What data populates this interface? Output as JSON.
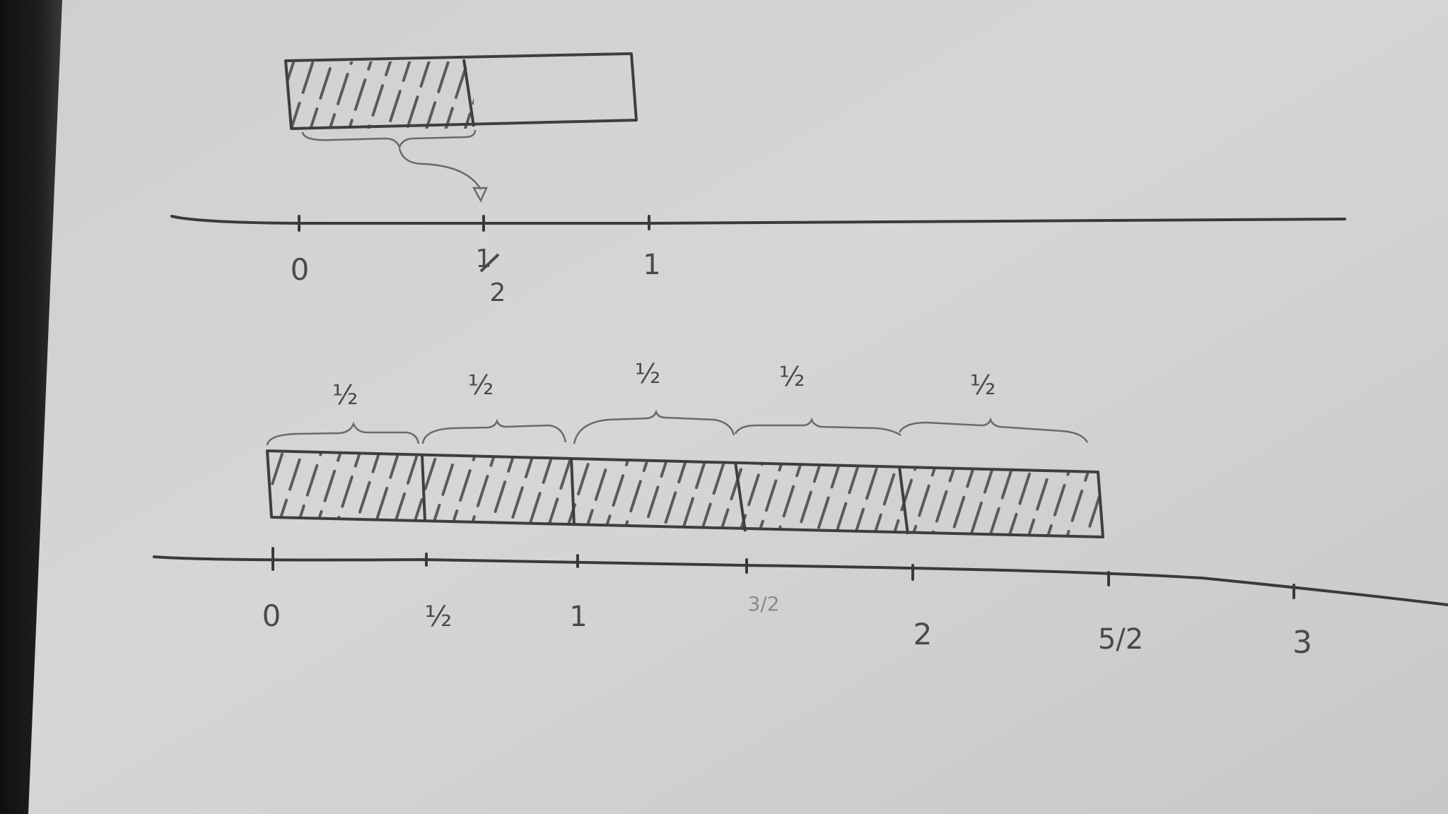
{
  "diagram": {
    "top_number_line": {
      "tick_labels": [
        {
          "key": "zero",
          "text": "0"
        },
        {
          "key": "half_num",
          "text": "1"
        },
        {
          "key": "half_den",
          "text": "2"
        },
        {
          "key": "one",
          "text": "1"
        }
      ]
    },
    "top_bar": {
      "parts": 2,
      "shaded_parts": 1
    },
    "bottom_number_line": {
      "tick_labels": [
        {
          "key": "zero",
          "text": "0"
        },
        {
          "key": "half",
          "text": "½"
        },
        {
          "key": "one",
          "text": "1"
        },
        {
          "key": "three_halves",
          "text": "3/2"
        },
        {
          "key": "two",
          "text": "2"
        },
        {
          "key": "five_halves",
          "text": "5/2"
        },
        {
          "key": "three",
          "text": "3"
        }
      ]
    },
    "bottom_bar": {
      "parts": 5,
      "shaded_parts": 5,
      "brace_labels": [
        "½",
        "½",
        "½",
        "½",
        "½"
      ]
    }
  }
}
